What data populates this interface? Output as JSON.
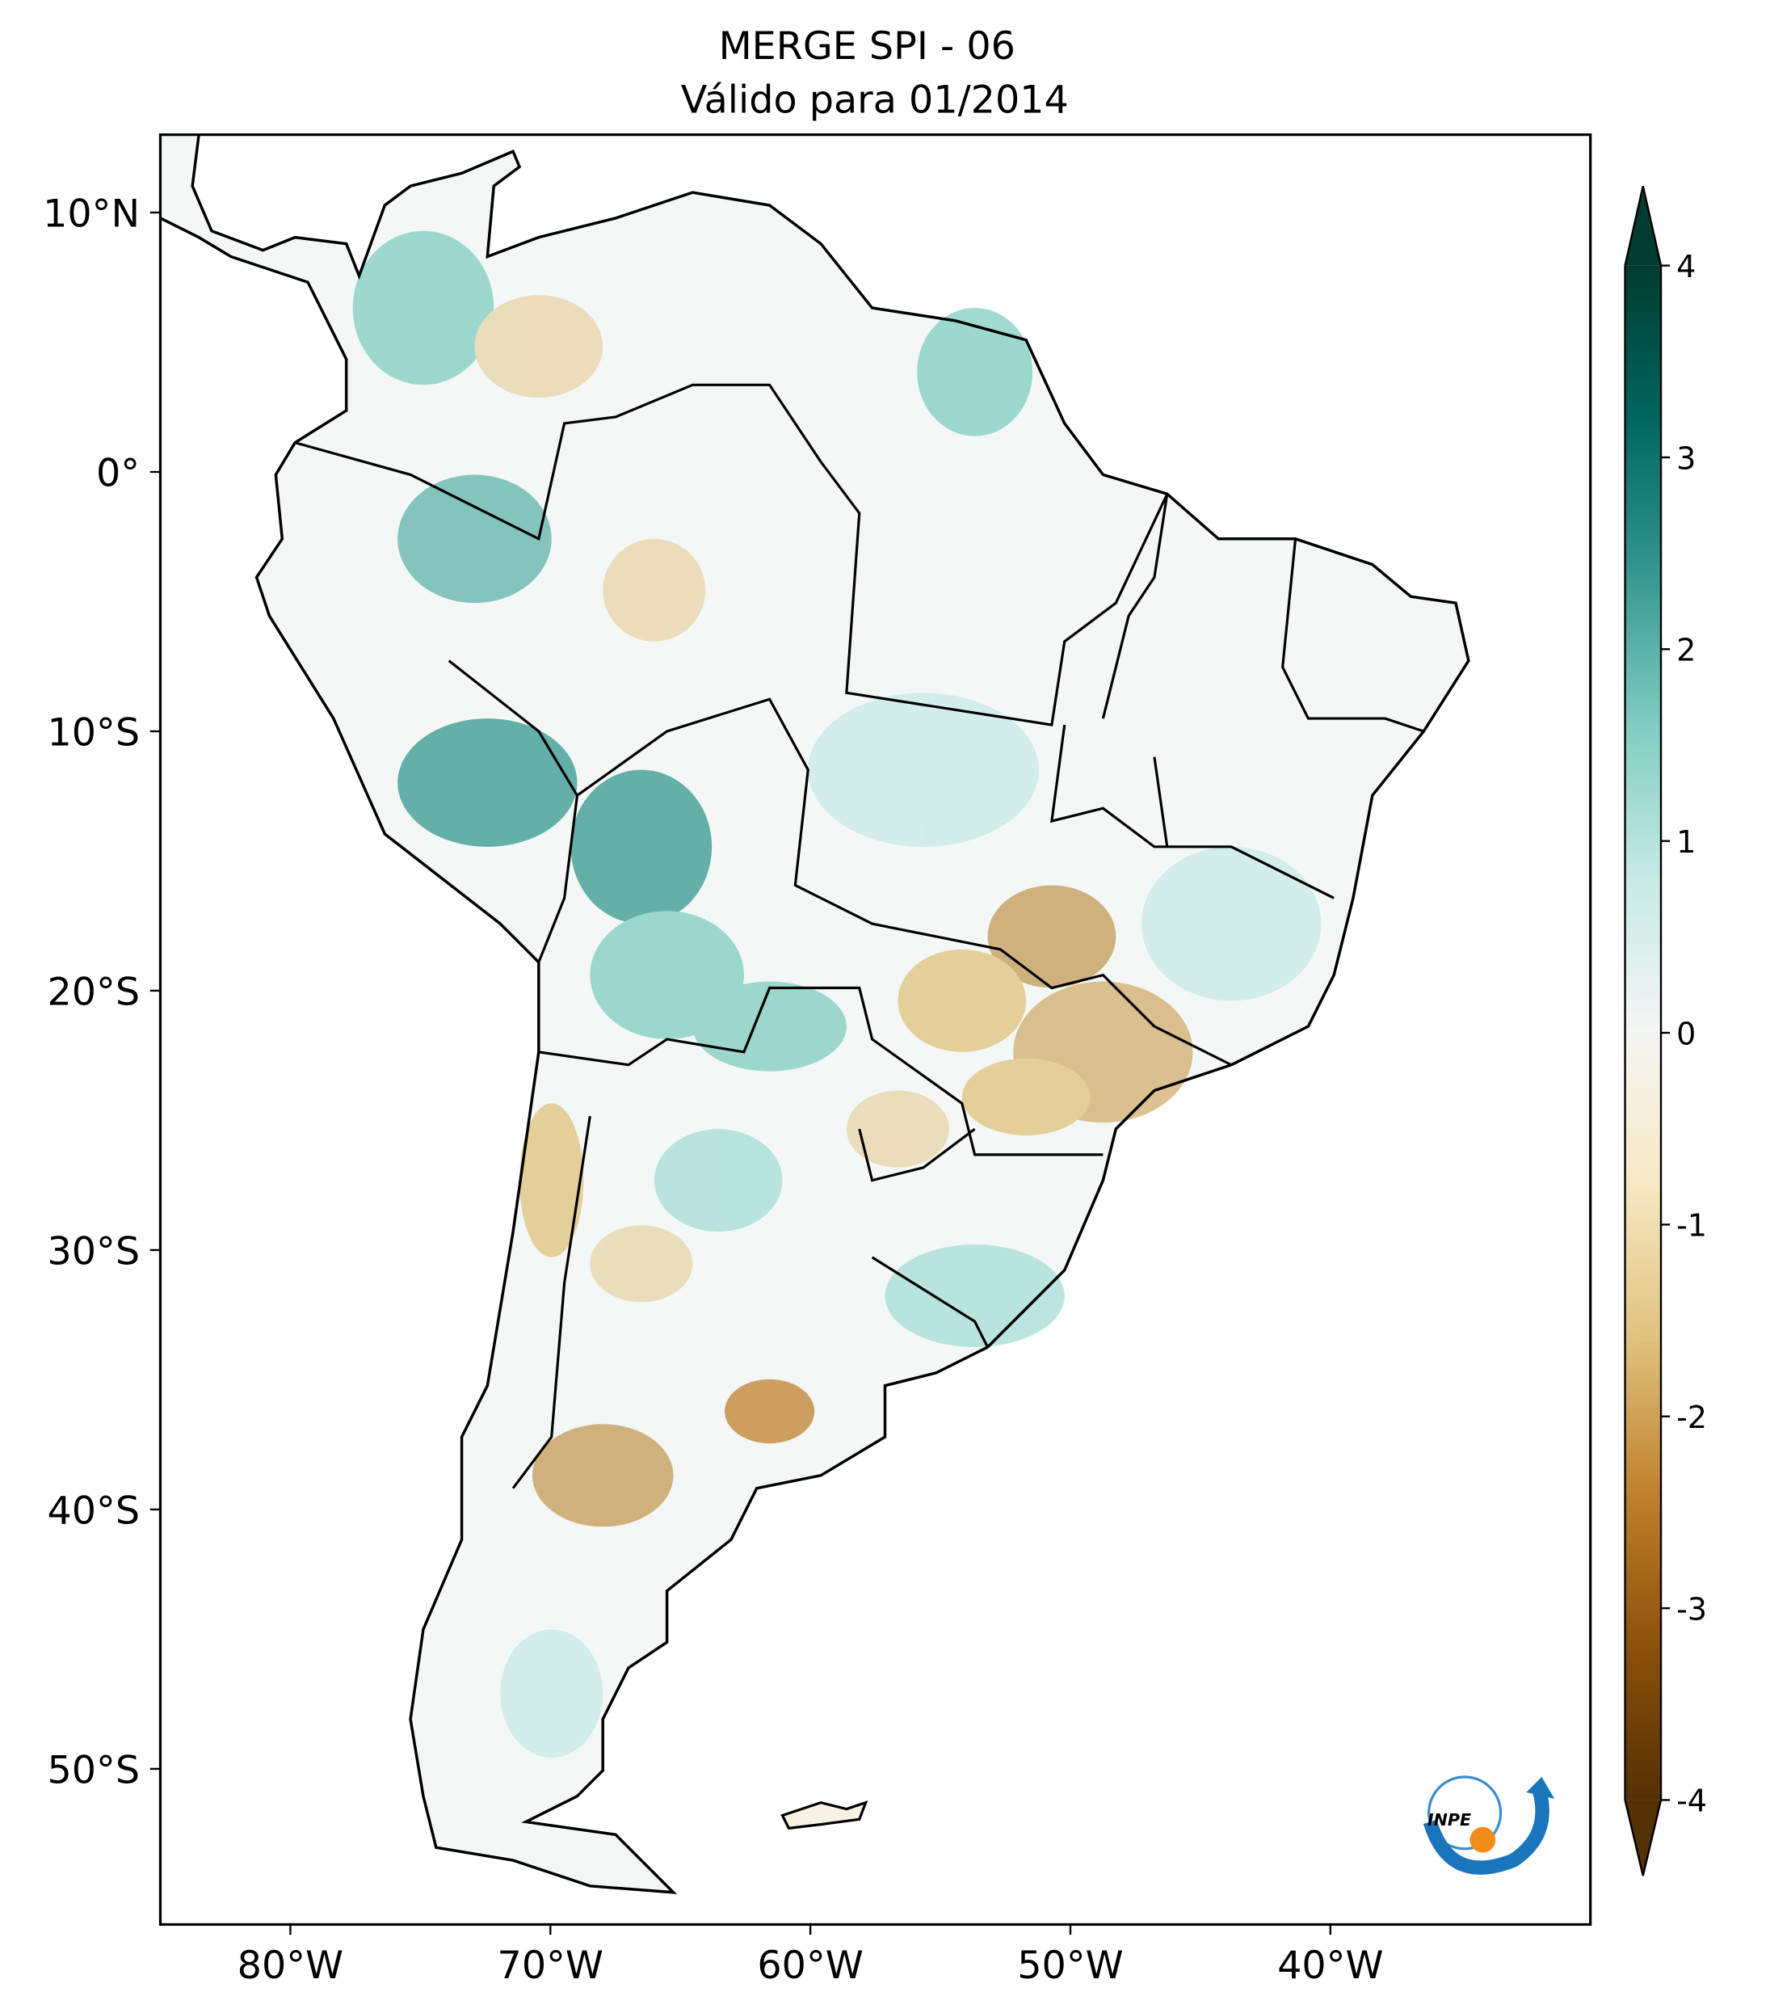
{
  "title": "MERGE   SPI - 06",
  "subtitle": "Válido para 01/2014",
  "map": {
    "lonlim": [
      -85,
      -30
    ],
    "latlim": [
      -56,
      13
    ],
    "lon_ticks": [
      {
        "value": -80,
        "label": "80°W"
      },
      {
        "value": -70,
        "label": "70°W"
      },
      {
        "value": -60,
        "label": "60°W"
      },
      {
        "value": -50,
        "label": "50°W"
      },
      {
        "value": -40,
        "label": "40°W"
      }
    ],
    "lat_ticks": [
      {
        "value": 10,
        "label": "10°N"
      },
      {
        "value": 0,
        "label": "0°"
      },
      {
        "value": -10,
        "label": "10°S"
      },
      {
        "value": -20,
        "label": "20°S"
      },
      {
        "value": -30,
        "label": "30°S"
      },
      {
        "value": -40,
        "label": "40°S"
      },
      {
        "value": -50,
        "label": "50°S"
      }
    ]
  },
  "colorbar": {
    "lim": [
      -4,
      4
    ],
    "ticks": [
      -4,
      -3,
      -2,
      -1,
      0,
      1,
      2,
      3,
      4
    ],
    "colors": [
      "#543005",
      "#8c510a",
      "#bf812d",
      "#dfc27d",
      "#f6e8c3",
      "#f5f5f5",
      "#c7eae5",
      "#80cdc1",
      "#35978f",
      "#01665e",
      "#003c30"
    ]
  },
  "logo": "INPE"
}
